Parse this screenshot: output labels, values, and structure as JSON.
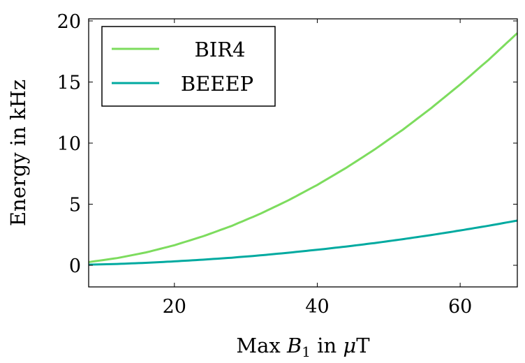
{
  "chart_data": {
    "type": "line",
    "title": "",
    "xlabel": "Max B1 in μT",
    "xlabel_parts": {
      "pre": "Max ",
      "var": "B",
      "sub": "1",
      "mid": " in ",
      "mu": "μ",
      "post": "T"
    },
    "ylabel": "Energy in kHz",
    "xlim": [
      8,
      68
    ],
    "ylim": [
      -1.77,
      20.17
    ],
    "xticks": [
      20,
      40,
      60
    ],
    "xtick_labels": [
      "20",
      "40",
      "60"
    ],
    "yticks": [
      0,
      5,
      10,
      15,
      20
    ],
    "ytick_labels": [
      "0",
      "5",
      "10",
      "15",
      "20"
    ],
    "grid": false,
    "legend_position": "top-left",
    "x": [
      8,
      12,
      16,
      20,
      24,
      28,
      32,
      36,
      40,
      44,
      48,
      52,
      56,
      60,
      64,
      68
    ],
    "series": [
      {
        "name": "BIR4",
        "color": "#7ddc5e",
        "values": [
          0.26,
          0.59,
          1.05,
          1.64,
          2.37,
          3.22,
          4.21,
          5.33,
          6.58,
          7.96,
          9.47,
          11.11,
          12.89,
          14.8,
          16.83,
          19.0
        ]
      },
      {
        "name": "BEEEP",
        "color": "#00aaa0",
        "values": [
          0.05,
          0.11,
          0.2,
          0.32,
          0.46,
          0.62,
          0.81,
          1.03,
          1.27,
          1.53,
          1.82,
          2.14,
          2.48,
          2.85,
          3.24,
          3.66
        ]
      }
    ]
  }
}
